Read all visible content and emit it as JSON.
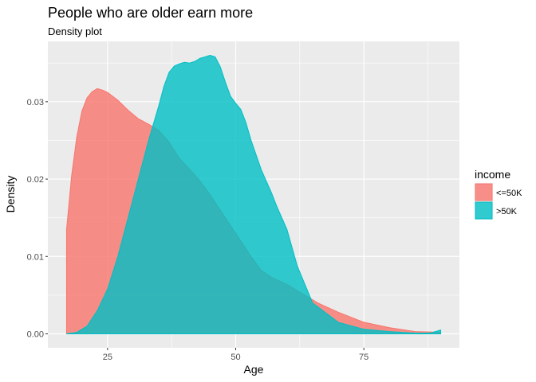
{
  "chart_data": {
    "type": "area",
    "title": "People who are older earn more",
    "subtitle": "Density plot",
    "xlabel": "Age",
    "ylabel": "Density",
    "xlim": [
      13.35,
      93.65
    ],
    "ylim": [
      -0.0018,
      0.0378
    ],
    "x_ticks": [
      25,
      50,
      75
    ],
    "x_tick_labels": [
      "25",
      "50",
      "75"
    ],
    "y_ticks": [
      0,
      0.01,
      0.02,
      0.03
    ],
    "y_tick_labels": [
      "0.00",
      "0.01",
      "0.02",
      "0.03"
    ],
    "grid": true,
    "legend": {
      "title": "income",
      "position": "right"
    },
    "series": [
      {
        "name": "<=50K",
        "color": "#F8766D",
        "opacity": 0.8,
        "x": [
          17,
          18,
          19,
          20,
          21,
          22,
          23,
          24,
          25,
          27,
          29,
          31,
          33,
          35,
          37,
          39,
          41,
          43,
          45,
          47,
          49,
          51,
          53,
          55,
          57,
          60,
          63,
          66,
          70,
          75,
          80,
          85,
          90
        ],
        "y": [
          0.0135,
          0.0205,
          0.0255,
          0.0288,
          0.0305,
          0.0313,
          0.0317,
          0.0315,
          0.0312,
          0.0302,
          0.0289,
          0.0278,
          0.0271,
          0.0263,
          0.0248,
          0.0227,
          0.0213,
          0.0198,
          0.018,
          0.016,
          0.014,
          0.012,
          0.01,
          0.0082,
          0.0073,
          0.0064,
          0.0052,
          0.004,
          0.0028,
          0.0015,
          0.0008,
          0.0003,
          0.0002
        ]
      },
      {
        "name": ">50K",
        "color": "#00BFC4",
        "opacity": 0.8,
        "x": [
          17,
          19,
          21,
          23,
          25,
          27,
          29,
          31,
          33,
          35,
          36,
          37,
          38,
          39,
          40,
          41,
          42,
          43,
          44,
          45,
          46,
          47,
          48,
          49,
          50,
          51,
          52,
          53,
          55,
          57,
          58,
          60,
          62,
          65,
          70,
          75,
          80,
          85,
          88,
          90
        ],
        "y": [
          0.0,
          0.0002,
          0.001,
          0.003,
          0.0058,
          0.01,
          0.015,
          0.02,
          0.025,
          0.0295,
          0.032,
          0.0338,
          0.0346,
          0.0349,
          0.0351,
          0.035,
          0.0352,
          0.0356,
          0.0358,
          0.036,
          0.0358,
          0.0345,
          0.0325,
          0.0307,
          0.0298,
          0.029,
          0.0273,
          0.025,
          0.0212,
          0.0182,
          0.0165,
          0.0135,
          0.0088,
          0.004,
          0.0015,
          0.0006,
          0.0003,
          0.0001,
          0.0001,
          0.0005
        ]
      }
    ]
  }
}
